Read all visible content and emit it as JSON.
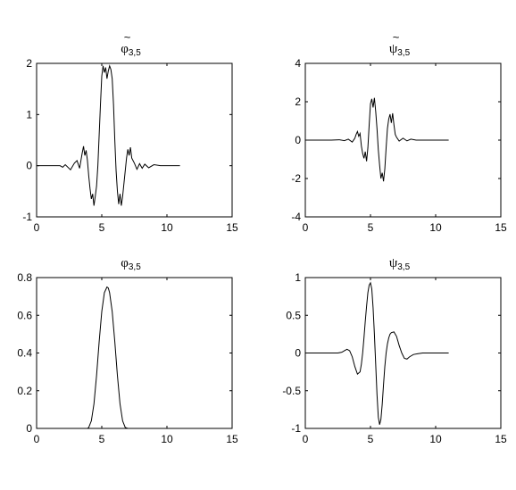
{
  "chart_data": [
    {
      "type": "line",
      "title": "φ3,5",
      "title_symbol": "φ",
      "title_sub": "3,5",
      "tilde": true,
      "xlim": [
        0,
        15
      ],
      "ylim": [
        -1,
        2
      ],
      "xticks": [
        0,
        5,
        10,
        15
      ],
      "yticks": [
        -1,
        0,
        1,
        2
      ],
      "grid": false,
      "series": [
        {
          "color": "#000000",
          "x": [
            0,
            1,
            1.8,
            2,
            2.2,
            2.6,
            2.9,
            3.1,
            3.3,
            3.5,
            3.6,
            3.7,
            3.8,
            3.9,
            4.0,
            4.1,
            4.2,
            4.3,
            4.4,
            4.5,
            4.6,
            4.7,
            4.8,
            4.9,
            5.0,
            5.1,
            5.2,
            5.3,
            5.4,
            5.5,
            5.6,
            5.7,
            5.8,
            5.9,
            6.0,
            6.1,
            6.2,
            6.3,
            6.4,
            6.5,
            6.6,
            6.7,
            6.8,
            6.9,
            7.0,
            7.1,
            7.2,
            7.3,
            7.5,
            7.7,
            7.9,
            8.1,
            8.3,
            8.6,
            9.0,
            9.5,
            10,
            11
          ],
          "y": [
            0,
            0,
            0,
            -0.03,
            0.02,
            -0.08,
            0.05,
            0.1,
            -0.05,
            0.25,
            0.38,
            0.2,
            0.3,
            0.1,
            -0.2,
            -0.45,
            -0.65,
            -0.55,
            -0.78,
            -0.6,
            -0.4,
            0.0,
            0.6,
            1.2,
            1.75,
            1.95,
            1.82,
            1.92,
            1.7,
            1.85,
            1.95,
            1.88,
            1.7,
            1.2,
            0.5,
            -0.1,
            -0.5,
            -0.75,
            -0.55,
            -0.78,
            -0.6,
            -0.35,
            -0.1,
            0.15,
            0.32,
            0.2,
            0.36,
            0.15,
            0.05,
            -0.07,
            0.04,
            -0.05,
            0.03,
            -0.04,
            0.02,
            0,
            0,
            0
          ]
        }
      ]
    },
    {
      "type": "line",
      "title": "ψ3,5",
      "title_symbol": "ψ",
      "title_sub": "3,5",
      "tilde": true,
      "xlim": [
        0,
        15
      ],
      "ylim": [
        -4,
        4
      ],
      "xticks": [
        0,
        5,
        10,
        15
      ],
      "yticks": [
        -4,
        -2,
        0,
        2,
        4
      ],
      "grid": false,
      "series": [
        {
          "color": "#000000",
          "x": [
            0,
            2,
            2.6,
            3.0,
            3.3,
            3.6,
            3.8,
            3.9,
            4.0,
            4.1,
            4.2,
            4.3,
            4.4,
            4.5,
            4.6,
            4.7,
            4.8,
            4.9,
            5.0,
            5.1,
            5.2,
            5.3,
            5.4,
            5.5,
            5.6,
            5.7,
            5.8,
            5.9,
            6.0,
            6.1,
            6.2,
            6.3,
            6.4,
            6.5,
            6.6,
            6.7,
            6.8,
            6.9,
            7.0,
            7.2,
            7.5,
            7.8,
            8.1,
            8.5,
            9,
            10,
            11
          ],
          "y": [
            0,
            0,
            0.02,
            -0.03,
            0.05,
            -0.1,
            0.1,
            0.3,
            0.45,
            0.2,
            0.35,
            -0.3,
            -0.7,
            -0.95,
            -0.6,
            -1.1,
            -0.4,
            0.8,
            1.9,
            2.15,
            1.7,
            2.2,
            1.5,
            0.6,
            -0.5,
            -1.3,
            -2.0,
            -1.7,
            -2.15,
            -1.5,
            -0.4,
            0.6,
            1.1,
            1.35,
            0.9,
            1.4,
            0.8,
            0.3,
            0.15,
            -0.05,
            0.1,
            -0.04,
            0.05,
            0,
            0,
            0,
            0
          ]
        }
      ]
    },
    {
      "type": "line",
      "title": "φ3,5",
      "title_symbol": "φ",
      "title_sub": "3,5",
      "tilde": false,
      "xlim": [
        0,
        15
      ],
      "ylim": [
        0,
        0.8
      ],
      "xticks": [
        0,
        5,
        10,
        15
      ],
      "yticks": [
        0,
        0.2,
        0.4,
        0.6,
        0.8
      ],
      "grid": false,
      "series": [
        {
          "color": "#000000",
          "x": [
            0,
            3.9,
            4.0,
            4.2,
            4.4,
            4.6,
            4.8,
            5.0,
            5.2,
            5.4,
            5.5,
            5.6,
            5.8,
            6.0,
            6.2,
            6.4,
            6.6,
            6.8,
            7.0,
            11
          ],
          "y": [
            0,
            0,
            0.005,
            0.04,
            0.13,
            0.28,
            0.46,
            0.62,
            0.72,
            0.75,
            0.745,
            0.72,
            0.62,
            0.46,
            0.28,
            0.13,
            0.04,
            0.005,
            0,
            0
          ]
        }
      ]
    },
    {
      "type": "line",
      "title": "ψ3,5",
      "title_symbol": "ψ",
      "title_sub": "3,5",
      "tilde": false,
      "xlim": [
        0,
        15
      ],
      "ylim": [
        -1,
        1
      ],
      "xticks": [
        0,
        5,
        10,
        15
      ],
      "yticks": [
        -1,
        -0.5,
        0,
        0.5,
        1
      ],
      "grid": false,
      "series": [
        {
          "color": "#000000",
          "x": [
            0,
            2.5,
            2.8,
            3.0,
            3.2,
            3.4,
            3.6,
            3.8,
            4.0,
            4.2,
            4.3,
            4.4,
            4.5,
            4.6,
            4.7,
            4.8,
            4.9,
            5.0,
            5.1,
            5.2,
            5.3,
            5.4,
            5.5,
            5.6,
            5.7,
            5.8,
            5.9,
            6.0,
            6.1,
            6.2,
            6.3,
            6.4,
            6.5,
            6.6,
            6.8,
            7.0,
            7.2,
            7.4,
            7.6,
            7.8,
            8.0,
            8.3,
            8.6,
            9.0,
            11
          ],
          "y": [
            0,
            0,
            0.01,
            0.03,
            0.05,
            0.03,
            -0.05,
            -0.18,
            -0.28,
            -0.25,
            -0.15,
            0.0,
            0.2,
            0.42,
            0.62,
            0.8,
            0.9,
            0.93,
            0.85,
            0.6,
            0.25,
            -0.15,
            -0.55,
            -0.85,
            -0.95,
            -0.88,
            -0.68,
            -0.42,
            -0.18,
            0.0,
            0.12,
            0.2,
            0.25,
            0.27,
            0.28,
            0.22,
            0.1,
            0.0,
            -0.07,
            -0.08,
            -0.05,
            -0.02,
            -0.01,
            0,
            0
          ]
        }
      ]
    }
  ]
}
